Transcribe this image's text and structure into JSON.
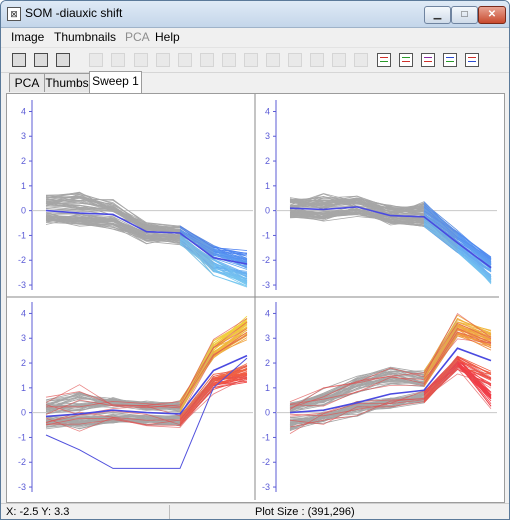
{
  "window": {
    "title": "SOM -diauxic shift"
  },
  "menu": [
    "Image",
    "Thumbnails",
    "PCA",
    "Help"
  ],
  "tabs": [
    "PCA",
    "Thumbs",
    "Sweep 1"
  ],
  "status": {
    "coords": "X: -2.5 Y: 3.3",
    "plot_size": "Plot Size : (391,296)"
  },
  "y_ticks": [
    "4",
    "3",
    "2",
    "1",
    "0",
    "-1",
    "-2",
    "-3"
  ],
  "chart_data": [
    {
      "type": "line",
      "panel": "top-left",
      "color_scheme": "blue",
      "x": [
        1,
        2,
        3,
        4,
        5,
        6,
        7
      ],
      "ylim": [
        -3.2,
        4.3
      ],
      "series": [
        {
          "values": [
            0.0,
            -0.1,
            -0.15,
            -0.85,
            -0.9,
            -1.9,
            -2.15
          ]
        }
      ],
      "background_profiles": [
        [
          0.5,
          0.45,
          0.3,
          -0.6,
          -0.7,
          -1.5,
          -1.7
        ],
        [
          -0.3,
          -0.5,
          -0.6,
          -1.2,
          -1.25,
          -2.2,
          -2.6
        ],
        [
          0.2,
          0.05,
          -0.05,
          -0.65,
          -0.8,
          -1.6,
          -2.0
        ],
        [
          -0.1,
          -0.3,
          -0.45,
          -1.1,
          -1.15,
          -2.5,
          -3.0
        ],
        [
          0.4,
          0.8,
          0.1,
          -0.7,
          -0.85,
          -1.8,
          -2.4
        ],
        [
          -0.4,
          -0.2,
          -0.3,
          -1.0,
          -1.0,
          -2.0,
          -2.8
        ]
      ]
    },
    {
      "type": "line",
      "panel": "top-right",
      "color_scheme": "blue",
      "x": [
        1,
        2,
        3,
        4,
        5,
        6,
        7
      ],
      "ylim": [
        -3.2,
        4.3
      ],
      "series": [
        {
          "values": [
            0.1,
            0.05,
            0.15,
            -0.2,
            -0.25,
            -1.3,
            -2.3
          ]
        }
      ],
      "background_profiles": [
        [
          0.4,
          0.3,
          0.45,
          0.1,
          0.05,
          -1.0,
          -2.0
        ],
        [
          -0.2,
          -0.3,
          -0.1,
          -0.5,
          -0.55,
          -1.6,
          -2.6
        ],
        [
          0.3,
          0.2,
          0.35,
          -0.05,
          -0.1,
          -1.2,
          -2.2
        ],
        [
          -0.1,
          -0.2,
          0.0,
          -0.35,
          -0.45,
          -1.5,
          -2.9
        ],
        [
          0.2,
          0.6,
          0.3,
          -0.1,
          0.2,
          -0.9,
          -2.1
        ],
        [
          0.0,
          -0.1,
          0.05,
          -0.3,
          -0.3,
          -1.4,
          -2.5
        ]
      ]
    },
    {
      "type": "line",
      "panel": "bottom-left",
      "color_scheme": "warm",
      "x": [
        1,
        2,
        3,
        4,
        5,
        6,
        7
      ],
      "ylim": [
        -3.2,
        4.3
      ],
      "series": [
        {
          "values": [
            -0.15,
            -0.05,
            0.1,
            0.0,
            -0.05,
            1.7,
            2.3
          ]
        }
      ],
      "outlier": [
        -0.9,
        -1.5,
        -2.25,
        -2.25,
        -2.25,
        1.0,
        2.2
      ],
      "background_profiles": [
        [
          0.4,
          0.9,
          0.45,
          0.3,
          0.4,
          2.8,
          3.8
        ],
        [
          -0.5,
          -0.45,
          -0.3,
          -0.3,
          -0.35,
          1.2,
          1.5
        ],
        [
          0.2,
          0.1,
          0.3,
          0.2,
          0.1,
          2.2,
          3.0
        ],
        [
          -0.3,
          -0.2,
          -0.1,
          -0.2,
          -0.25,
          1.5,
          1.9
        ],
        [
          0.1,
          0.3,
          0.5,
          0.3,
          0.3,
          2.5,
          3.4
        ],
        [
          -0.2,
          -0.5,
          -0.2,
          -0.4,
          -0.4,
          1.0,
          1.3
        ]
      ]
    },
    {
      "type": "line",
      "panel": "bottom-right",
      "color_scheme": "warm",
      "x": [
        1,
        2,
        3,
        4,
        5,
        6,
        7
      ],
      "ylim": [
        -3.2,
        4.3
      ],
      "series": [
        {
          "values": [
            0.0,
            0.1,
            0.4,
            0.75,
            0.9,
            2.6,
            2.1
          ]
        }
      ],
      "background_profiles": [
        [
          0.3,
          0.8,
          1.4,
          1.7,
          1.6,
          3.8,
          3.2
        ],
        [
          -0.5,
          -0.3,
          0.0,
          0.3,
          0.5,
          1.8,
          1.2
        ],
        [
          0.1,
          0.4,
          0.9,
          1.2,
          1.1,
          3.1,
          2.6
        ],
        [
          -0.3,
          -0.1,
          0.2,
          0.5,
          0.6,
          2.2,
          1.6
        ],
        [
          0.2,
          0.5,
          1.1,
          1.6,
          1.3,
          3.5,
          3.0
        ],
        [
          -0.6,
          -0.2,
          0.3,
          0.4,
          0.7,
          2.0,
          0.4
        ]
      ]
    }
  ]
}
